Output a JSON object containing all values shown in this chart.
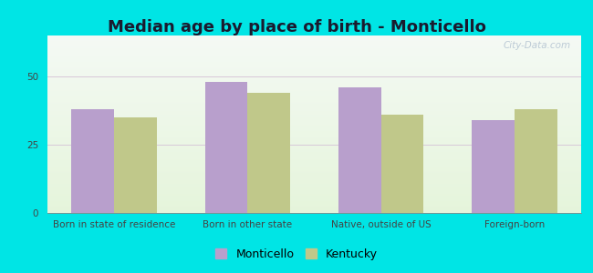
{
  "title": "Median age by place of birth - Monticello",
  "categories": [
    "Born in state of residence",
    "Born in other state",
    "Native, outside of US",
    "Foreign-born"
  ],
  "monticello_values": [
    38,
    48,
    46,
    34
  ],
  "kentucky_values": [
    35,
    44,
    36,
    38
  ],
  "monticello_color": "#b89fcc",
  "kentucky_color": "#c0c88a",
  "background_outer": "#00e5e5",
  "ylim": [
    0,
    65
  ],
  "yticks": [
    0,
    25,
    50
  ],
  "bar_width": 0.32,
  "legend_monticello": "Monticello",
  "legend_kentucky": "Kentucky",
  "title_fontsize": 13,
  "tick_fontsize": 7.5,
  "legend_fontsize": 9,
  "grid_color": "#d8c8d8",
  "watermark": "City-Data.com"
}
